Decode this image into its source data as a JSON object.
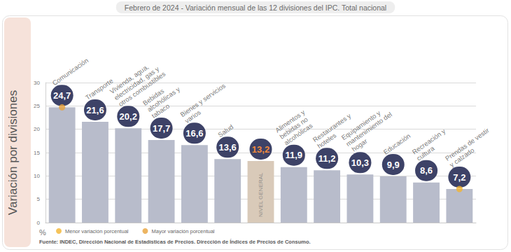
{
  "chart_data": {
    "type": "bar",
    "title": "Febrero de 2024 - Variación mensual de las 12 divisiones del IPC. Total nacional",
    "ylabel": "Variación por divisiones",
    "yunit": "%",
    "source": "Fuente: INDEC, Dirección Nacional de Estadísticas de Precios. Dirección de Índices de Precios de Consumo.",
    "categories": [
      "Comunicación",
      "Transporte",
      "Vivienda, agua, electricidad, gas y otros combustibles",
      "Bebidas alcohólicas y tabaco",
      "Bienes y servicios varios",
      "Salud",
      "NIVEL GENERAL",
      "Alimentos y bebidas no alcohólicas",
      "Restaurantes y hoteles",
      "Equipamiento y mantenimiento del hogar",
      "Educación",
      "Recreación y cultura",
      "Prendas de vestir y calzado"
    ],
    "values": [
      24.7,
      21.6,
      20.2,
      17.7,
      16.6,
      13.6,
      13.2,
      11.9,
      11.2,
      10.3,
      9.9,
      8.6,
      7.2
    ],
    "value_labels": [
      "24,7",
      "21,6",
      "20,2",
      "17,7",
      "16,6",
      "13,6",
      "13,2",
      "11,9",
      "11,2",
      "10,3",
      "9,9",
      "8,6",
      "7,2"
    ],
    "colors": [
      "#b8bccb",
      "#b8bccb",
      "#b8bccb",
      "#b8bccb",
      "#b8bccb",
      "#b8bccb",
      "#d9cab9",
      "#b8bccb",
      "#b8bccb",
      "#b8bccb",
      "#b8bccb",
      "#b8bccb",
      "#b8bccb"
    ],
    "data_labels": true,
    "ylim": [
      0,
      30
    ],
    "yticks": [
      0,
      5,
      10,
      15,
      20,
      25,
      30
    ],
    "grid": true,
    "legend": "lower left",
    "annotations": [
      {
        "text": "Menor variación porcentual",
        "category": "Prendas de vestir y calzado",
        "color": "#f3b431"
      },
      {
        "text": "Mayor variación porcentual",
        "category": "Comunicación",
        "color": "#e9a23b"
      }
    ]
  }
}
